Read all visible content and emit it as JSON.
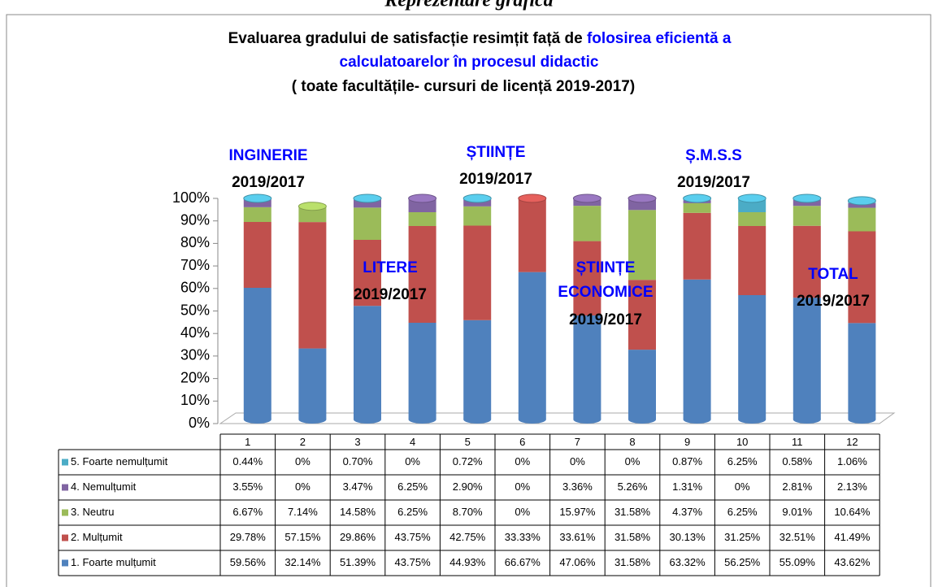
{
  "heading": "Reprezentare grafică",
  "chart_data": {
    "type": "stacked_cylinder",
    "title": "Evaluarea gradului de satisfacție resimțit față de",
    "title_highlight": [
      "folosirea eficientă a",
      "calculatoarelor în procesul didactic"
    ],
    "subtitle": "( toate facultățile- cursuri de licență 2019-2017)",
    "categories": [
      "1",
      "2",
      "3",
      "4",
      "5",
      "6",
      "7",
      "8",
      "9",
      "10",
      "11",
      "12"
    ],
    "series": [
      {
        "name": "1. Foarte mulțumit",
        "color": "#4f81bd",
        "values": [
          59.56,
          32.14,
          51.39,
          43.75,
          44.93,
          66.67,
          47.06,
          31.58,
          63.32,
          56.25,
          55.09,
          43.62
        ],
        "value_labels": [
          "59.56%",
          "32.14%",
          "51.39%",
          "43.75%",
          "44.93%",
          "66.67%",
          "47.06%",
          "31.58%",
          "63.32%",
          "56.25%",
          "55.09%",
          "43.62%"
        ]
      },
      {
        "name": "2. Mulțumit",
        "color": "#c0504d",
        "values": [
          29.78,
          57.15,
          29.86,
          43.75,
          42.75,
          33.33,
          33.61,
          31.58,
          30.13,
          31.25,
          32.51,
          41.49
        ],
        "value_labels": [
          "29.78%",
          "57.15%",
          "29.86%",
          "43.75%",
          "42.75%",
          "33.33%",
          "33.61%",
          "31.58%",
          "30.13%",
          "31.25%",
          "32.51%",
          "41.49%"
        ]
      },
      {
        "name": "3. Neutru",
        "color": "#9bbb59",
        "values": [
          6.67,
          7.14,
          14.58,
          6.25,
          8.7,
          0,
          15.97,
          31.58,
          4.37,
          6.25,
          9.01,
          10.64
        ],
        "value_labels": [
          "6.67%",
          "7.14%",
          "14.58%",
          "6.25%",
          "8.70%",
          "0%",
          "15.97%",
          "31.58%",
          "4.37%",
          "6.25%",
          "9.01%",
          "10.64%"
        ]
      },
      {
        "name": "4. Nemulțumit",
        "color": "#8064a2",
        "values": [
          3.55,
          0,
          3.47,
          6.25,
          2.9,
          0,
          3.36,
          5.26,
          1.31,
          0,
          2.81,
          2.13
        ],
        "value_labels": [
          "3.55%",
          "0%",
          "3.47%",
          "6.25%",
          "2.90%",
          "0%",
          "3.36%",
          "5.26%",
          "1.31%",
          "0%",
          "2.81%",
          "2.13%"
        ]
      },
      {
        "name": "5. Foarte nemulțumit",
        "color": "#4bacc6",
        "values": [
          0.44,
          0,
          0.7,
          0,
          0.72,
          0,
          0,
          0,
          0.87,
          6.25,
          0.58,
          1.06
        ],
        "value_labels": [
          "0.44%",
          "0%",
          "0.70%",
          "0%",
          "0.72%",
          "0%",
          "0%",
          "0%",
          "0.87%",
          "6.25%",
          "0.58%",
          "1.06%"
        ]
      }
    ],
    "ylim": [
      0,
      100
    ],
    "yticks": [
      {
        "value": 0,
        "label": "0%"
      },
      {
        "value": 10,
        "label": "10%"
      },
      {
        "value": 20,
        "label": "20%"
      },
      {
        "value": 30,
        "label": "30%"
      },
      {
        "value": 40,
        "label": "40%"
      },
      {
        "value": 50,
        "label": "50%"
      },
      {
        "value": 60,
        "label": "60%"
      },
      {
        "value": 70,
        "label": "70%"
      },
      {
        "value": 80,
        "label": "80%"
      },
      {
        "value": 90,
        "label": "90%"
      },
      {
        "value": 100,
        "label": "100%"
      }
    ],
    "annotations": [
      {
        "name": [
          "INGINERIE"
        ],
        "period": "2019/2017"
      },
      {
        "name": [
          "ȘTIINȚE"
        ],
        "period": "2019/2017"
      },
      {
        "name": [
          "Ș.M.S.S"
        ],
        "period": "2019/2017"
      },
      {
        "name": [
          "LITERE"
        ],
        "period": "2019/2017"
      },
      {
        "name": [
          "ȘTIINȚE",
          "ECONOMICE"
        ],
        "period": "2019/2017"
      },
      {
        "name": [
          "TOTAL"
        ],
        "period": "2019/2017"
      }
    ],
    "annotation_color": "#0000ff"
  }
}
